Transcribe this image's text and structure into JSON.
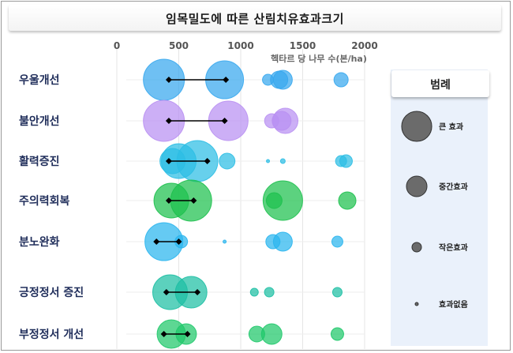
{
  "title": "임목밀도에 따른 산림치유효과크기",
  "chart_data": {
    "type": "scatter",
    "title": "임목밀도에 따른 산림치유효과크기",
    "xlabel": "헥타르 당 나무 수(본/ha)",
    "xlim": [
      0,
      2000
    ],
    "xticks": [
      0,
      500,
      1000,
      1500,
      2000
    ],
    "grid": true,
    "legend_placement": "right",
    "categories": [
      "우울개선",
      "불안개선",
      "활력증진",
      "주의력회복",
      "분노완화",
      "긍정정서 증진",
      "부정정서 개선"
    ],
    "rows": [
      {
        "label": "우울개선",
        "color": "#38a8ee",
        "bubbles": [
          {
            "x": 380,
            "size": 26
          },
          {
            "x": 870,
            "size": 24
          },
          {
            "x": 1220,
            "size": 7
          },
          {
            "x": 1310,
            "size": 11
          },
          {
            "x": 1340,
            "size": 12
          },
          {
            "x": 1810,
            "size": 9
          }
        ],
        "range": [
          420,
          880
        ]
      },
      {
        "label": "불안개선",
        "color": "#b990f2",
        "bubbles": [
          {
            "x": 380,
            "size": 26
          },
          {
            "x": 900,
            "size": 25
          },
          {
            "x": 1250,
            "size": 9
          },
          {
            "x": 1360,
            "size": 16
          },
          {
            "x": 1330,
            "size": 12
          }
        ],
        "range": [
          420,
          870
        ]
      },
      {
        "label": "활력증진",
        "color": "#2cbee4",
        "bubbles": [
          {
            "x": 500,
            "size": 22
          },
          {
            "x": 650,
            "size": 26
          },
          {
            "x": 450,
            "size": 16
          },
          {
            "x": 890,
            "size": 10
          },
          {
            "x": 1220,
            "size": 2
          },
          {
            "x": 1340,
            "size": 3
          },
          {
            "x": 1810,
            "size": 7
          },
          {
            "x": 1850,
            "size": 8
          }
        ],
        "range": [
          420,
          730
        ]
      },
      {
        "label": "주의력회복",
        "color": "#1dc04e",
        "bubbles": [
          {
            "x": 440,
            "size": 22
          },
          {
            "x": 600,
            "size": 26
          },
          {
            "x": 1270,
            "size": 10
          },
          {
            "x": 1340,
            "size": 25
          },
          {
            "x": 1860,
            "size": 11
          }
        ],
        "range": [
          420,
          620
        ]
      },
      {
        "label": "분노완화",
        "color": "#2ab5ee",
        "bubbles": [
          {
            "x": 380,
            "size": 24
          },
          {
            "x": 520,
            "size": 8
          },
          {
            "x": 870,
            "size": 2
          },
          {
            "x": 1260,
            "size": 9
          },
          {
            "x": 1340,
            "size": 12
          },
          {
            "x": 1780,
            "size": 7
          }
        ],
        "range": [
          320,
          500
        ]
      },
      {
        "label": "긍정정서 증진",
        "color": "#1dbfa4",
        "bubbles": [
          {
            "x": 430,
            "size": 22
          },
          {
            "x": 600,
            "size": 20
          },
          {
            "x": 1110,
            "size": 5
          },
          {
            "x": 1230,
            "size": 6
          },
          {
            "x": 1780,
            "size": 6
          }
        ],
        "range": [
          400,
          650
        ]
      },
      {
        "label": "부정정서 개선",
        "color": "#1ec86a",
        "bubbles": [
          {
            "x": 440,
            "size": 18
          },
          {
            "x": 560,
            "size": 13
          },
          {
            "x": 1130,
            "size": 10
          },
          {
            "x": 1250,
            "size": 13
          },
          {
            "x": 1780,
            "size": 8
          }
        ],
        "range": [
          380,
          570
        ]
      }
    ]
  },
  "legend": {
    "title": "범례",
    "items": [
      {
        "label": "큰 효과",
        "size": 20
      },
      {
        "label": "중간효과",
        "size": 13
      },
      {
        "label": "작은효과",
        "size": 6
      },
      {
        "label": "효과없음",
        "size": 2
      }
    ]
  }
}
